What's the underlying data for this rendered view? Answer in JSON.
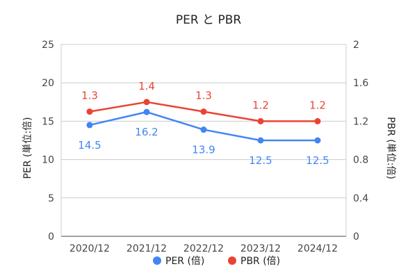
{
  "chart_data": {
    "type": "line",
    "title": "PER と PBR",
    "categories": [
      "2020/12",
      "2021/12",
      "2022/12",
      "2023/12",
      "2024/12"
    ],
    "y_left": {
      "label": "PER (単位:倍)",
      "range": [
        0,
        25
      ],
      "ticks": [
        "0",
        "5",
        "10",
        "15",
        "20",
        "25"
      ]
    },
    "y_right": {
      "label": "PBR (単位:倍)",
      "range": [
        0,
        2
      ],
      "ticks": [
        "0",
        "0.4",
        "0.8",
        "1.2",
        "1.6",
        "2"
      ]
    },
    "series": [
      {
        "name": "PER (倍)",
        "axis": "left",
        "color": "#4285f4",
        "values": [
          14.5,
          16.2,
          13.9,
          12.5,
          12.5
        ],
        "labels": [
          "14.5",
          "16.2",
          "13.9",
          "12.5",
          "12.5"
        ]
      },
      {
        "name": "PBR (倍)",
        "axis": "right",
        "color": "#ea4335",
        "values": [
          1.3,
          1.4,
          1.3,
          1.2,
          1.2
        ],
        "labels": [
          "1.3",
          "1.4",
          "1.3",
          "1.2",
          "1.2"
        ]
      }
    ],
    "grid": true,
    "legend_position": "bottom"
  }
}
